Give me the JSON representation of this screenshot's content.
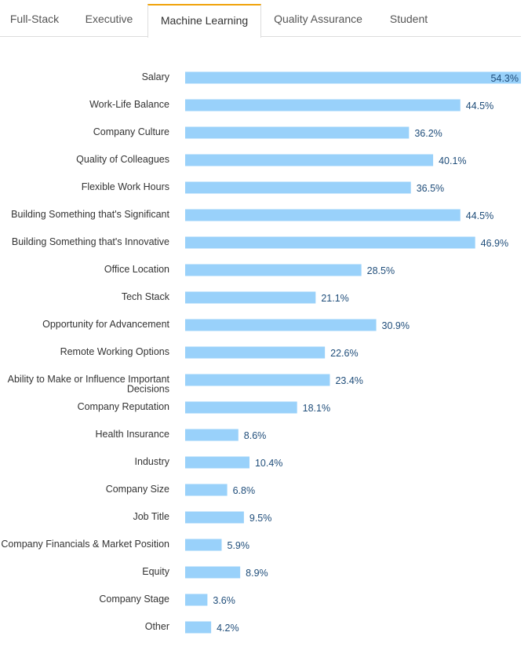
{
  "tabs": [
    {
      "label": "Full-Stack",
      "active": false
    },
    {
      "label": "Executive",
      "active": false
    },
    {
      "label": "Machine Learning",
      "active": true
    },
    {
      "label": "Quality Assurance",
      "active": false
    },
    {
      "label": "Student",
      "active": false
    }
  ],
  "colors": {
    "bar": "#99d1fa",
    "value_text": "#1f4d7a",
    "tab_accent": "#f0a30a"
  },
  "chart_data": {
    "type": "bar",
    "orientation": "horizontal",
    "title": "",
    "xlabel": "",
    "ylabel": "",
    "unit": "%",
    "xlim": [
      0,
      54.3
    ],
    "grid": false,
    "categories": [
      "Salary",
      "Work-Life Balance",
      "Company Culture",
      "Quality of Colleagues",
      "Flexible Work Hours",
      "Building Something that's Significant",
      "Building Something that's Innovative",
      "Office Location",
      "Tech Stack",
      "Opportunity for Advancement",
      "Remote Working Options",
      "Ability to Make or Influence Important Decisions",
      "Company Reputation",
      "Health Insurance",
      "Industry",
      "Company Size",
      "Job Title",
      "Company Financials & Market Position",
      "Equity",
      "Company Stage",
      "Other"
    ],
    "values": [
      54.3,
      44.5,
      36.2,
      40.1,
      36.5,
      44.5,
      46.9,
      28.5,
      21.1,
      30.9,
      22.6,
      23.4,
      18.1,
      8.6,
      10.4,
      6.8,
      9.5,
      5.9,
      8.9,
      3.6,
      4.2
    ],
    "value_labels": [
      "54.3%",
      "44.5%",
      "36.2%",
      "40.1%",
      "36.5%",
      "44.5%",
      "46.9%",
      "28.5%",
      "21.1%",
      "30.9%",
      "22.6%",
      "23.4%",
      "18.1%",
      "8.6%",
      "10.4%",
      "6.8%",
      "9.5%",
      "5.9%",
      "8.9%",
      "3.6%",
      "4.2%"
    ]
  }
}
